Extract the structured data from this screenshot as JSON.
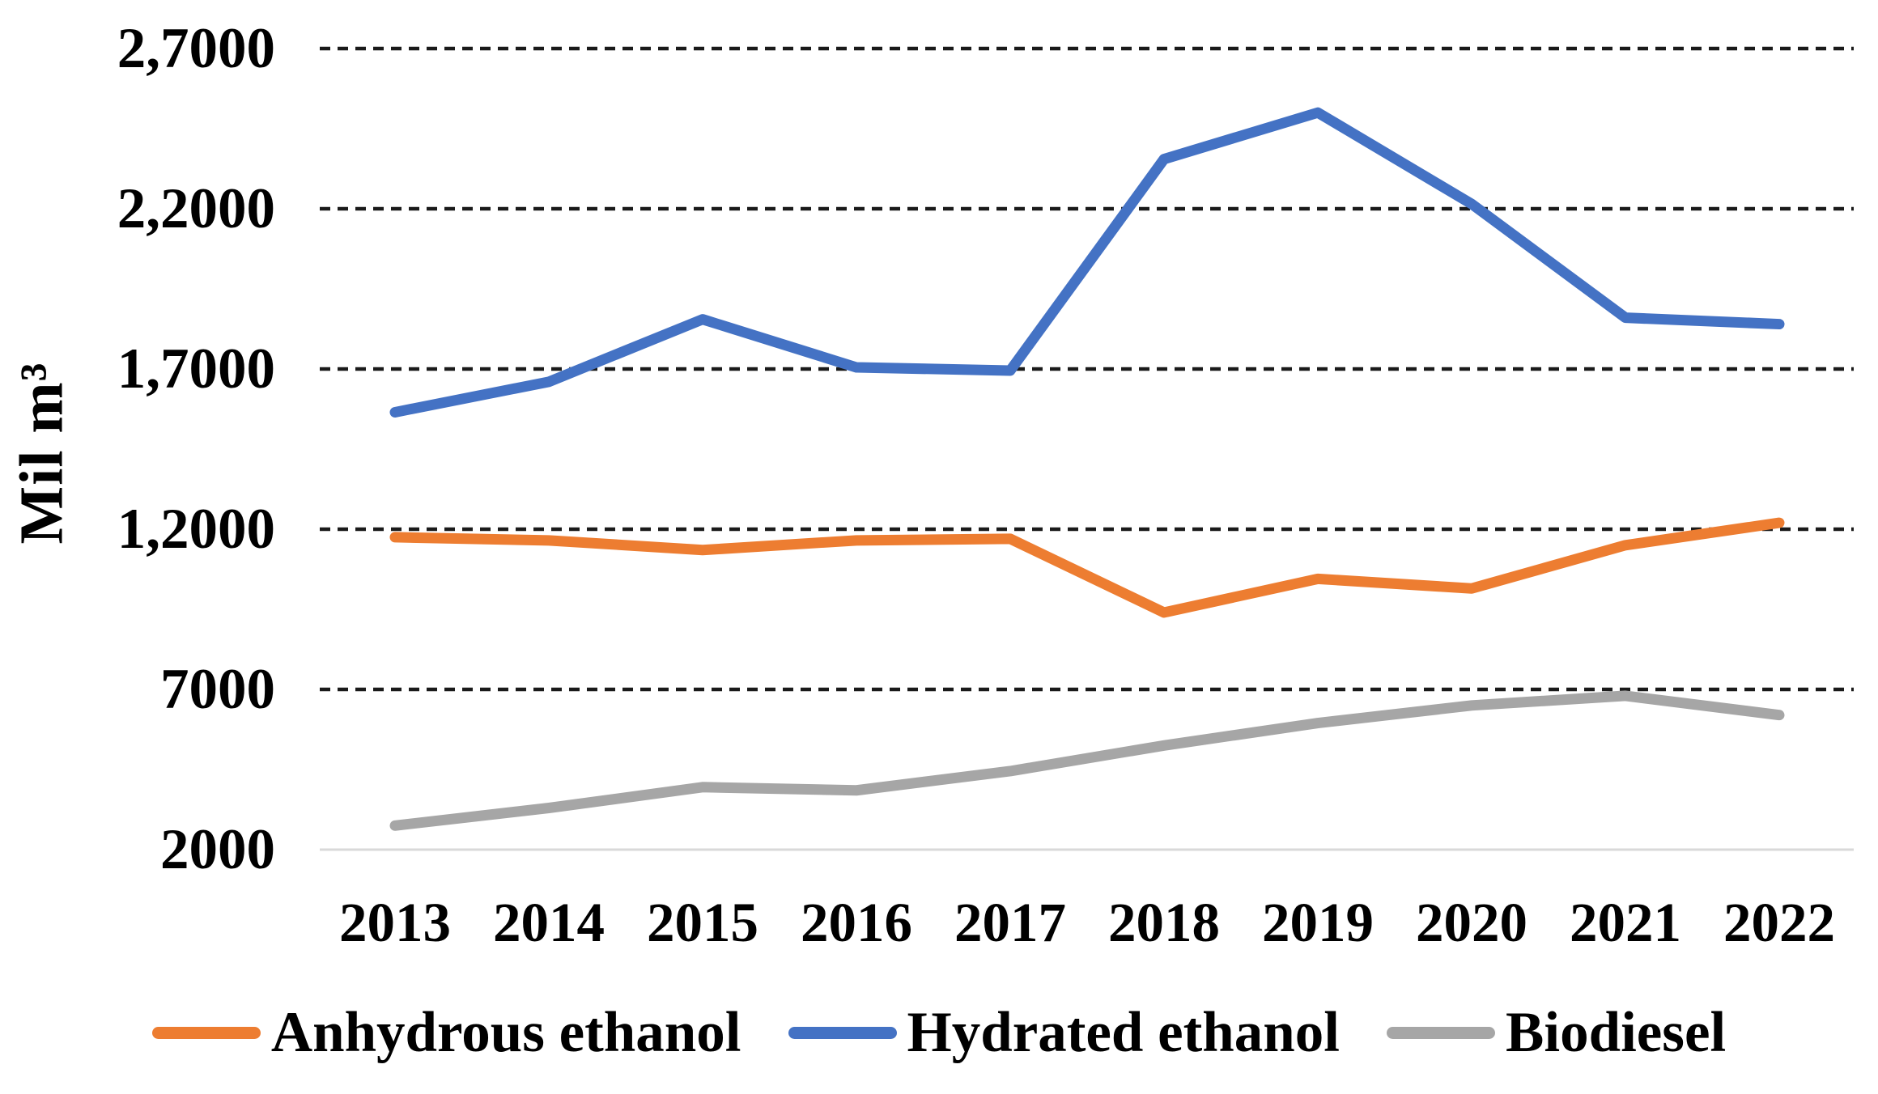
{
  "chart_data": {
    "type": "line",
    "title": "",
    "ylabel": "Mil m³",
    "xlabel": "",
    "x": [
      2013,
      2014,
      2015,
      2016,
      2017,
      2018,
      2019,
      2020,
      2021,
      2022
    ],
    "series": [
      {
        "name": "Anhydrous ethanol",
        "color": "#ED7D31",
        "values": [
          11750,
          11650,
          11350,
          11650,
          11700,
          9400,
          10450,
          10150,
          11500,
          12200
        ]
      },
      {
        "name": "Hydrated ethanol",
        "color": "#4472C4",
        "values": [
          15650,
          16600,
          18550,
          17050,
          16950,
          23550,
          25000,
          22150,
          18600,
          18400
        ]
      },
      {
        "name": "Biodiesel",
        "color": "#A6A6A6",
        "values": [
          2750,
          3300,
          3950,
          3850,
          4450,
          5250,
          5950,
          6500,
          6800,
          6200
        ]
      }
    ],
    "y_axis": {
      "min": 2000,
      "max": 27000,
      "step": 5000,
      "tick_labels": [
        "2000",
        "7000",
        "1,2000",
        "1,7000",
        "2,2000",
        "2,7000"
      ]
    },
    "grid": "horizontal-dashed",
    "gridline_color": "#1a1a1a",
    "baseline_color": "#d9d9d9",
    "legend_position": "bottom"
  }
}
